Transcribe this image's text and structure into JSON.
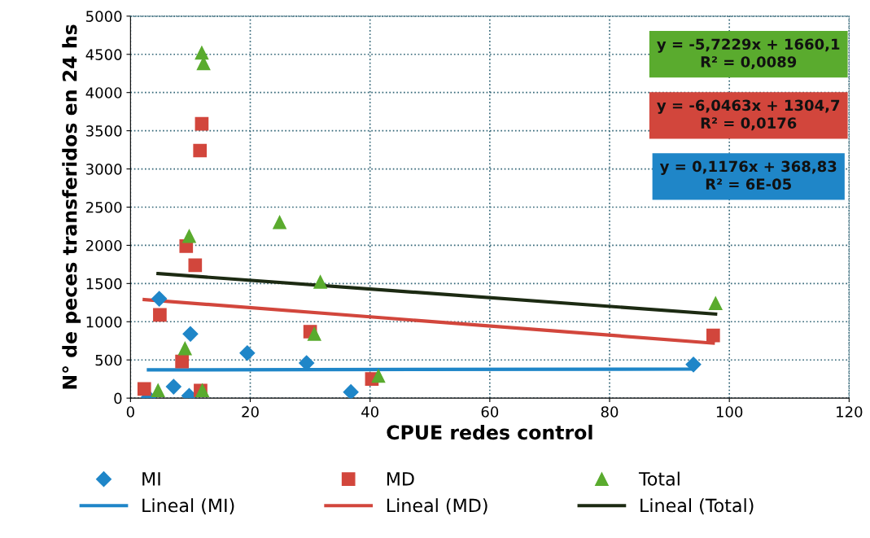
{
  "chart_data": {
    "type": "scatter",
    "xlabel": "CPUE redes control",
    "ylabel": "N° de peces transferidos en 24 hs",
    "xlim": [
      0,
      120
    ],
    "xticks": [
      0,
      20,
      40,
      60,
      80,
      100,
      120
    ],
    "ylim": [
      0,
      5000
    ],
    "yticks": [
      0,
      500,
      1000,
      1500,
      2000,
      2500,
      3000,
      3500,
      4000,
      4500,
      5000
    ],
    "grid": true,
    "legend": "bottom",
    "series": [
      {
        "name": "MI",
        "marker": "diamond",
        "color": "#1f86c8",
        "x": [
          4.8,
          7.2,
          3,
          9.8,
          10,
          19.5,
          29.4,
          36.8,
          94
        ],
        "values": [
          1300,
          150,
          10,
          30,
          840,
          590,
          460,
          80,
          440
        ]
      },
      {
        "name": "MD",
        "marker": "square",
        "color": "#d2463c",
        "x": [
          2.3,
          4.9,
          8.6,
          9.3,
          10.8,
          11.6,
          11.9,
          11.7,
          30,
          40.3,
          97.3
        ],
        "values": [
          120,
          1090,
          480,
          1990,
          1740,
          3240,
          3590,
          100,
          870,
          250,
          820
        ]
      },
      {
        "name": "Total",
        "marker": "triangle",
        "color": "#5aab2e",
        "x": [
          4.6,
          9.1,
          9.8,
          11.9,
          12.2,
          12,
          24.9,
          31.7,
          30.7,
          41.4,
          97.7
        ],
        "values": [
          100,
          650,
          2120,
          4520,
          4380,
          100,
          2300,
          1520,
          840,
          290,
          1240
        ]
      },
      {
        "name": "Lineal (MI)",
        "type": "line",
        "color": "#1f86c8",
        "x": [
          3,
          94
        ],
        "values": [
          370,
          380
        ]
      },
      {
        "name": "Lineal (MD)",
        "type": "line",
        "color": "#d2463c",
        "x": [
          2.3,
          97.3
        ],
        "values": [
          1290,
          720
        ]
      },
      {
        "name": "Lineal (Total)",
        "type": "line",
        "color": "#1c2a12",
        "x": [
          4.6,
          97.7
        ],
        "values": [
          1630,
          1100
        ]
      }
    ],
    "annotations": [
      "y = -5,7229x + 1660,1\nR² = 0,0089",
      "y = -6,0463x + 1304,7\nR² = 0,0176",
      "y = 0,1176x + 368,83\nR² = 6E-05"
    ]
  }
}
